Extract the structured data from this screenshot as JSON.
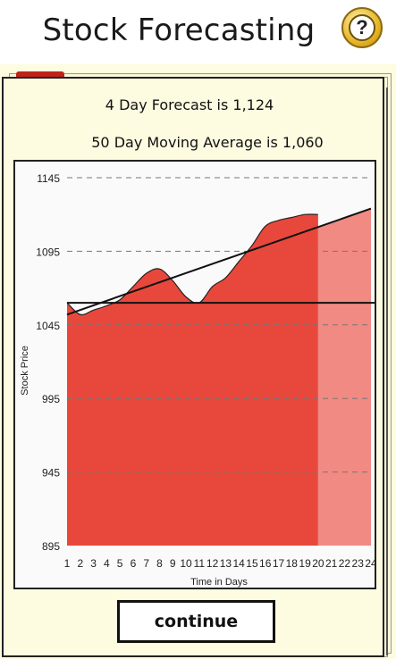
{
  "header": {
    "title": "Stock Forecasting",
    "help_icon": "help-question-icon",
    "help_symbol": "?"
  },
  "card": {
    "forecast_text": "4 Day Forecast is 1,124",
    "moving_average_text": "50 Day Moving Average is 1,060"
  },
  "colors": {
    "area_fill": "#e8483c",
    "forecast_fill": "#f08a82",
    "card_bg": "#fdfbe0",
    "line": "#111111"
  },
  "chart_data": {
    "type": "area",
    "xlabel": "Time in Days",
    "ylabel": "Stock Price",
    "x": [
      1,
      2,
      3,
      4,
      5,
      6,
      7,
      8,
      9,
      10,
      11,
      12,
      13,
      14,
      15,
      16,
      17,
      18,
      19,
      20
    ],
    "forecast_x": [
      20,
      21,
      22,
      23,
      24
    ],
    "y_ticks": [
      895,
      945,
      995,
      1045,
      1095,
      1145
    ],
    "ylim": [
      895,
      1145
    ],
    "xlim": [
      1,
      24
    ],
    "series": [
      {
        "values": [
          1060,
          1052,
          1055,
          1058,
          1062,
          1071,
          1080,
          1083,
          1075,
          1064,
          1060,
          1071,
          1077,
          1088,
          1099,
          1112,
          1116,
          1118,
          1120,
          1120
        ]
      }
    ],
    "forecast_value": 1124,
    "moving_average": 1060,
    "trend_line": {
      "start": [
        1,
        1052
      ],
      "end": [
        24,
        1124
      ]
    },
    "grid": "dashed horizontal"
  },
  "actions": {
    "continue_label": "continue"
  }
}
